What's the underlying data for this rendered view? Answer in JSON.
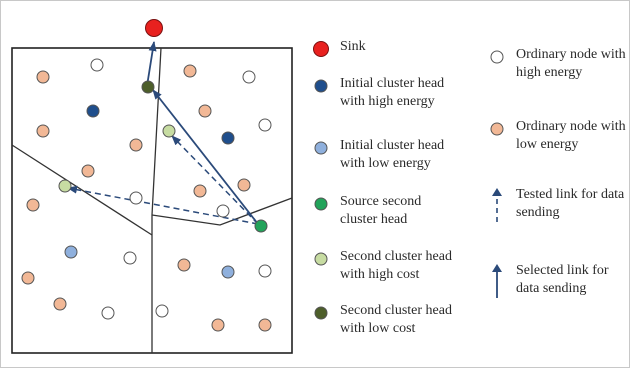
{
  "colors": {
    "sink": "#e8211f",
    "initial_ch_high_energy": "#1f4e8c",
    "initial_ch_low_energy": "#8fb0dd",
    "source_second_ch": "#22a35a",
    "second_ch_high_cost": "#c7dca2",
    "second_ch_low_cost": "#4d5e2a",
    "ordinary_high_energy": "#ffffff",
    "ordinary_low_energy": "#f2b896",
    "link": "#2b4a7a"
  },
  "legend": {
    "sink": "Sink",
    "initial_ch_high": "Initial cluster head\nwith high energy",
    "initial_ch_low": "Initial cluster head\nwith low energy",
    "source_second_ch": "Source second\ncluster head",
    "second_ch_high_cost": "Second cluster head\nwith high cost",
    "second_ch_low_cost": "Second cluster head\nwith low cost",
    "ordinary_high": "Ordinary node with\nhigh energy",
    "ordinary_low": "Ordinary node with\nlow energy",
    "tested_link": "Tested link for data\nsending",
    "selected_link": "Selected link for\ndata sending"
  }
}
